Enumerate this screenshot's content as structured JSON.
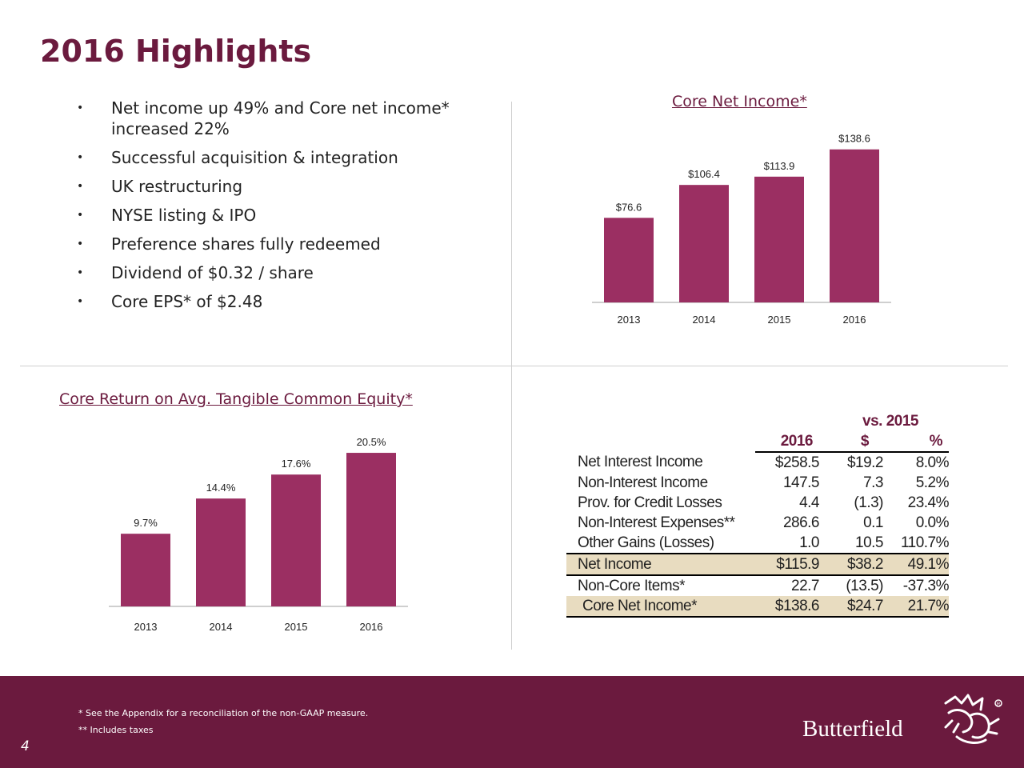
{
  "title": "2016 Highlights",
  "bullet_marker": "•",
  "bullets": [
    "Net income up 49% and Core net income* increased 22%",
    "Successful acquisition & integration",
    "UK restructuring",
    "NYSE listing & IPO",
    "Preference shares fully redeemed",
    "Dividend of $0.32 / share",
    "Core EPS* of $2.48"
  ],
  "chart_data": [
    {
      "type": "bar",
      "title": "Core Net Income*",
      "categories": [
        "2013",
        "2014",
        "2015",
        "2016"
      ],
      "values": [
        76.6,
        106.4,
        113.9,
        138.6
      ],
      "labels": [
        "$76.6",
        "$106.4",
        "$113.9",
        "$138.6"
      ],
      "ylim": [
        0,
        150
      ],
      "color": "#9b2f62"
    },
    {
      "type": "bar",
      "title": "Core Return on Avg. Tangible Common Equity*",
      "categories": [
        "2013",
        "2014",
        "2015",
        "2016"
      ],
      "values": [
        9.7,
        14.4,
        17.6,
        20.5
      ],
      "labels": [
        "9.7%",
        "14.4%",
        "17.6%",
        "20.5%"
      ],
      "ylim": [
        0,
        22
      ],
      "color": "#9b2f62"
    },
    {
      "type": "table",
      "group_header": "vs. 2015",
      "columns": [
        "2016",
        "$",
        "%"
      ],
      "rows": [
        {
          "label": "Net Interest Income",
          "v2016": "$258.5",
          "chg": "$19.2",
          "pct": "8.0%"
        },
        {
          "label": "Non-Interest Income",
          "v2016": "147.5",
          "chg": "7.3",
          "pct": "5.2%"
        },
        {
          "label": "Prov. for Credit Losses",
          "v2016": "4.4",
          "chg": "(1.3)",
          "pct": "23.4%"
        },
        {
          "label": "Non-Interest Expenses**",
          "v2016": "286.6",
          "chg": "0.1",
          "pct": "0.0%"
        },
        {
          "label": "Other Gains (Losses)",
          "v2016": "1.0",
          "chg": "10.5",
          "pct": "110.7%"
        },
        {
          "label": "Net Income",
          "v2016": "$115.9",
          "chg": "$38.2",
          "pct": "49.1%"
        },
        {
          "label": "Non-Core Items*",
          "v2016": "22.7",
          "chg": "(13.5)",
          "pct": "-37.3%"
        },
        {
          "label": "Core Net Income*",
          "v2016": "$138.6",
          "chg": "$24.7",
          "pct": "21.7%"
        }
      ]
    }
  ],
  "footer": {
    "note1": "* See the Appendix for a reconciliation of the non-GAAP measure.",
    "note2": "** Includes taxes",
    "page": "4",
    "brand": "Butterfield",
    "logo_icon": "dragon-crest-icon",
    "accent": "#6b1a3e",
    "highlight": "#e8dcc0"
  }
}
